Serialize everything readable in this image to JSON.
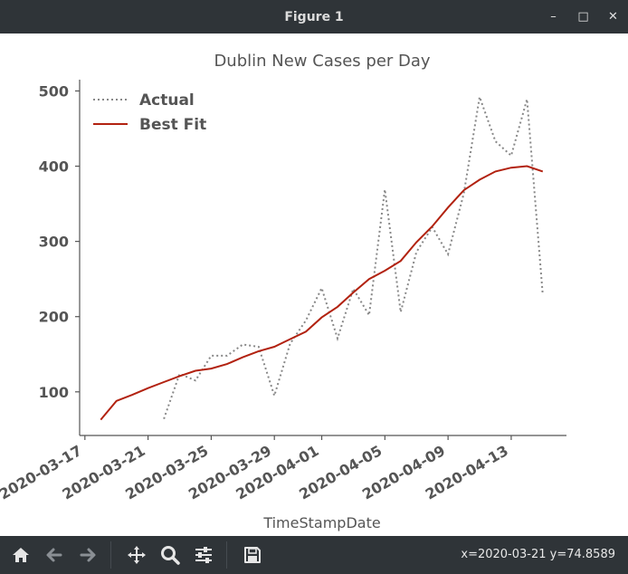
{
  "window": {
    "title": "Figure 1",
    "controls": {
      "minimize": "–",
      "maximize": "□",
      "close": "✕"
    }
  },
  "toolbar": {
    "icons": [
      "home-icon",
      "back-arrow-icon",
      "forward-arrow-icon",
      "pan-icon",
      "zoom-icon",
      "configure-subplots-icon",
      "save-icon"
    ],
    "status": "x=2020-03-21 y=74.8589"
  },
  "colors": {
    "actual": "#888888",
    "best_fit": "#b22210",
    "axes": "#555555",
    "text": "#555555",
    "chrome": "#2f3438"
  },
  "chart_data": {
    "type": "line",
    "title": "Dublin New Cases per Day",
    "xlabel": "TimeStampDate",
    "ylabel": "",
    "x_tick_labels": [
      "2020-03-17",
      "2020-03-21",
      "2020-03-25",
      "2020-03-29",
      "2020-04-01",
      "2020-04-05",
      "2020-04-09",
      "2020-04-13"
    ],
    "x_tick_dates": [
      "2020-03-17",
      "2020-03-21",
      "2020-03-25",
      "2020-03-29",
      "2020-04-01",
      "2020-04-05",
      "2020-04-09",
      "2020-04-13"
    ],
    "y_ticks": [
      100,
      200,
      300,
      400,
      500
    ],
    "xlim": [
      "2020-03-16T16:00",
      "2020-04-16T12:00"
    ],
    "ylim": [
      42,
      515
    ],
    "legend_position": "upper-left",
    "grid": false,
    "series": [
      {
        "name": "Actual",
        "style": "dotted",
        "x": [
          "2020-03-22",
          "2020-03-23",
          "2020-03-24",
          "2020-03-25",
          "2020-03-26",
          "2020-03-27",
          "2020-03-28",
          "2020-03-29",
          "2020-03-30",
          "2020-03-31",
          "2020-04-01",
          "2020-04-02",
          "2020-04-03",
          "2020-04-04",
          "2020-04-05",
          "2020-04-06",
          "2020-04-07",
          "2020-04-08",
          "2020-04-09",
          "2020-04-10",
          "2020-04-11",
          "2020-04-12",
          "2020-04-13",
          "2020-04-14",
          "2020-04-15"
        ],
        "values": [
          64,
          124,
          115,
          148,
          148,
          163,
          160,
          95,
          164,
          195,
          238,
          171,
          237,
          202,
          369,
          206,
          286,
          319,
          283,
          364,
          492,
          433,
          414,
          489,
          229
        ]
      },
      {
        "name": "Best Fit",
        "style": "solid",
        "x": [
          "2020-03-18",
          "2020-03-19",
          "2020-03-20",
          "2020-03-21",
          "2020-03-22",
          "2020-03-23",
          "2020-03-24",
          "2020-03-25",
          "2020-03-26",
          "2020-03-27",
          "2020-03-28",
          "2020-03-29",
          "2020-03-30",
          "2020-03-31",
          "2020-04-01",
          "2020-04-02",
          "2020-04-03",
          "2020-04-04",
          "2020-04-05",
          "2020-04-06",
          "2020-04-07",
          "2020-04-08",
          "2020-04-09",
          "2020-04-10",
          "2020-04-11",
          "2020-04-12",
          "2020-04-13",
          "2020-04-14",
          "2020-04-15"
        ],
        "values": [
          63,
          88,
          96,
          105,
          113,
          121,
          128,
          131,
          137,
          146,
          154,
          160,
          170,
          180,
          199,
          213,
          232,
          250,
          261,
          274,
          299,
          320,
          345,
          368,
          382,
          393,
          398,
          400,
          393
        ]
      }
    ]
  }
}
